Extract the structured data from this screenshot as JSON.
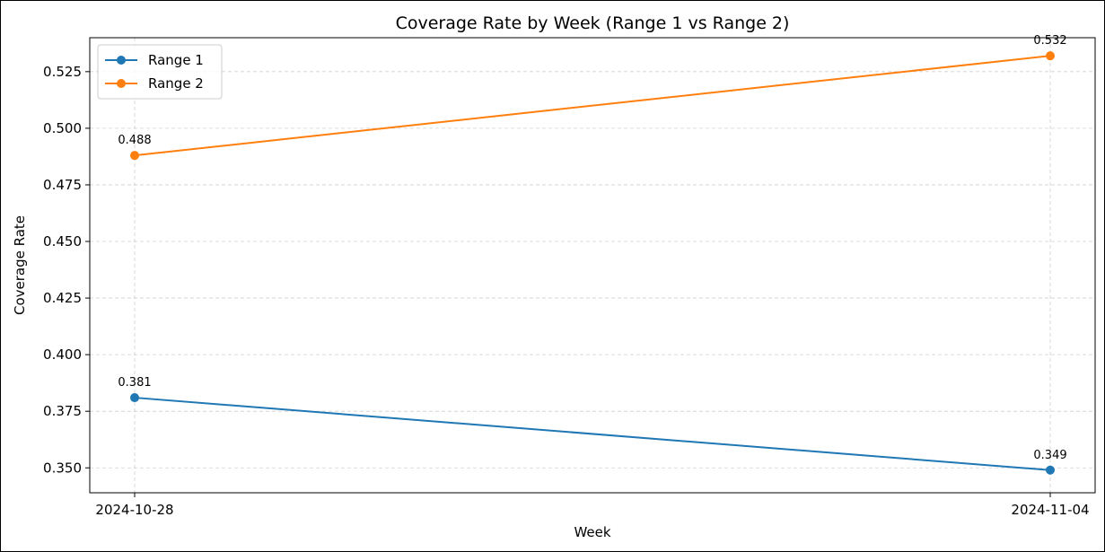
{
  "chart_data": {
    "type": "line",
    "title": "Coverage Rate by Week (Range 1 vs Range 2)",
    "xlabel": "Week",
    "ylabel": "Coverage Rate",
    "x": [
      "2024-10-28",
      "2024-11-04"
    ],
    "ylim": [
      0.339,
      0.54
    ],
    "yticks": [
      0.35,
      0.375,
      0.4,
      0.425,
      0.45,
      0.475,
      0.5,
      0.525
    ],
    "ytick_labels": [
      "0.350",
      "0.375",
      "0.400",
      "0.425",
      "0.450",
      "0.475",
      "0.500",
      "0.525"
    ],
    "grid": true,
    "legend_position": "upper-left",
    "series": [
      {
        "name": "Range 1",
        "color": "#1f77b4",
        "values": [
          0.381,
          0.349
        ],
        "labels": [
          "0.381",
          "0.349"
        ]
      },
      {
        "name": "Range 2",
        "color": "#ff7f0e",
        "values": [
          0.488,
          0.532
        ],
        "labels": [
          "0.488",
          "0.532"
        ]
      }
    ]
  }
}
